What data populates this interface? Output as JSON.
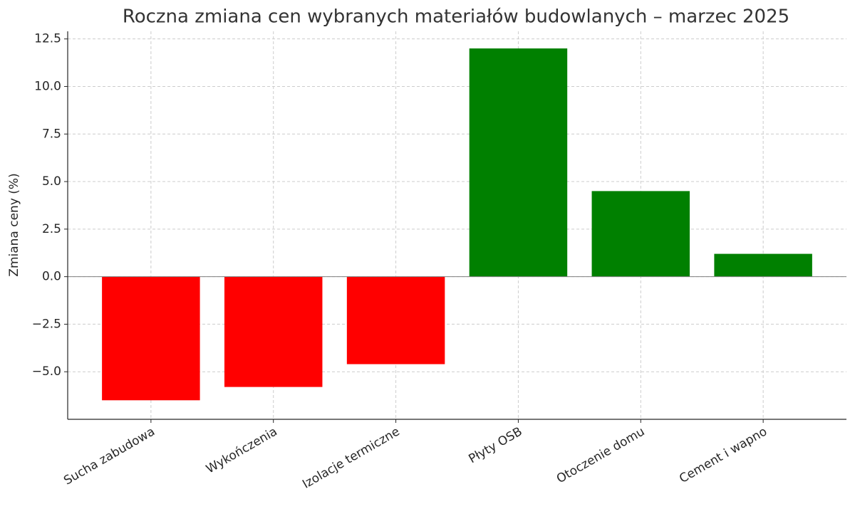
{
  "chart_data": {
    "type": "bar",
    "title": "Roczna zmiana cen wybranych materiałów budowlanych – marzec 2025",
    "y_label": "Zmiana ceny (%)",
    "categories": [
      "Sucha zabudowa",
      "Wykończenia",
      "Izolacje termiczne",
      "Płyty OSB",
      "Otoczenie domu",
      "Cement i wapno"
    ],
    "values": [
      -6.5,
      -5.8,
      -4.6,
      12.0,
      4.5,
      1.2
    ],
    "colors": [
      "#ff0000",
      "#ff0000",
      "#ff0000",
      "#008000",
      "#008000",
      "#008000"
    ],
    "ylim": [
      -7.5,
      12.9
    ],
    "yticks": [
      {
        "value": -5,
        "label": "−5.0"
      },
      {
        "value": -2.5,
        "label": "−2.5"
      },
      {
        "value": 0,
        "label": "0.0"
      },
      2.5,
      {
        "value": 5,
        "label": "5.0"
      },
      7.5,
      {
        "value": 10,
        "label": "10.0"
      },
      12.5
    ],
    "grid": true
  }
}
